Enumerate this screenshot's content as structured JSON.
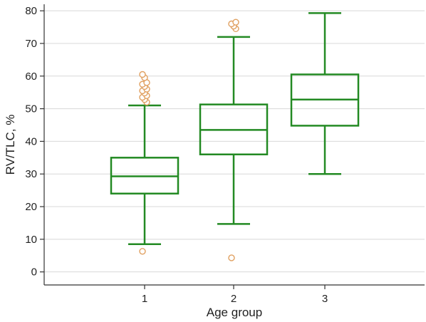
{
  "chart_data": {
    "type": "boxplot",
    "xlabel": "Age group",
    "ylabel": "RV/TLC, %",
    "ylim": [
      -4,
      82
    ],
    "yticks": [
      0,
      10,
      20,
      30,
      40,
      50,
      60,
      70,
      80
    ],
    "grid": true,
    "colors": {
      "box": "#238a23",
      "outlier": "#e0a060",
      "grid": "#d8d8d8",
      "axis": "#333333"
    },
    "groups": [
      {
        "label": "1",
        "whisker_low": 8.5,
        "q1": 24,
        "median": 29.3,
        "q3": 35,
        "whisker_high": 51,
        "outliers": [
          6.3,
          52,
          52.8,
          53.5,
          54,
          54.8,
          55.5,
          56,
          56.8,
          57.5,
          58,
          59.5,
          60.5
        ]
      },
      {
        "label": "2",
        "whisker_low": 14.7,
        "q1": 36,
        "median": 43.5,
        "q3": 51.3,
        "whisker_high": 72,
        "outliers": [
          4.3,
          74.5,
          75.3,
          76,
          76.5
        ]
      },
      {
        "label": "3",
        "whisker_low": 30,
        "q1": 44.8,
        "median": 52.8,
        "q3": 60.5,
        "whisker_high": 79.3,
        "outliers": []
      }
    ]
  }
}
